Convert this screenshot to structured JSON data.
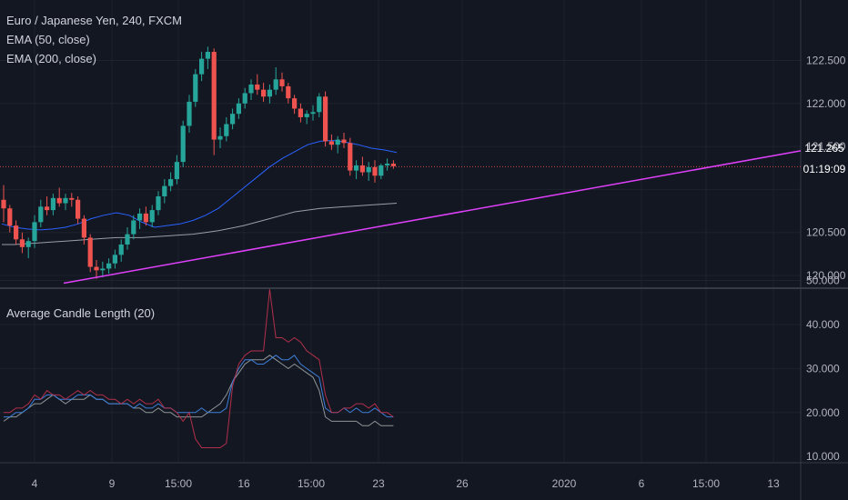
{
  "legend": {
    "symbol": "Euro / Japanese Yen, 240, FXCM",
    "ema50": "EMA (50, close)",
    "ema200": "EMA (200, close)",
    "indicator": "Average Candle Length (20)"
  },
  "price_tags": {
    "last_price": "121.265",
    "countdown": "01:19:09",
    "color": "#ef5350"
  },
  "colors": {
    "background": "#131722",
    "grid": "#1e222d",
    "text": "#b2b5be",
    "up": "#26a69a",
    "down": "#ef5350",
    "ema50": "#2962ff",
    "ema200": "#b2b5be",
    "trendline": "#e040fb",
    "acl_red": "#b2304a",
    "acl_blue": "#3d7fd9",
    "acl_gray": "#8e9596"
  },
  "chart_data": [
    {
      "type": "candlestick",
      "title": "Euro / Japanese Yen, 240, FXCM",
      "ylim": [
        119.85,
        122.75
      ],
      "y_ticks": [
        "122.500",
        "122.000",
        "121.500",
        "120.500",
        "120.000"
      ],
      "x_ticks": [
        "4",
        "9",
        "15:00",
        "16",
        "15:00",
        "23",
        "26",
        "2020",
        "6",
        "15:00",
        "13"
      ],
      "last_price": 121.265,
      "candles_ohlc": [
        [
          120.88,
          121.05,
          120.62,
          120.78
        ],
        [
          120.78,
          120.82,
          120.5,
          120.58
        ],
        [
          120.58,
          120.64,
          120.36,
          120.42
        ],
        [
          120.42,
          120.5,
          120.26,
          120.33
        ],
        [
          120.33,
          120.44,
          120.2,
          120.4
        ],
        [
          120.4,
          120.7,
          120.32,
          120.62
        ],
        [
          120.62,
          120.88,
          120.56,
          120.8
        ],
        [
          120.8,
          120.92,
          120.7,
          120.76
        ],
        [
          120.76,
          120.95,
          120.7,
          120.9
        ],
        [
          120.9,
          121.02,
          120.8,
          120.84
        ],
        [
          120.84,
          120.95,
          120.76,
          120.9
        ],
        [
          120.9,
          120.96,
          120.8,
          120.88
        ],
        [
          120.88,
          120.92,
          120.6,
          120.66
        ],
        [
          120.66,
          120.7,
          120.36,
          120.44
        ],
        [
          120.44,
          120.48,
          120.04,
          120.1
        ],
        [
          120.1,
          120.18,
          119.96,
          120.06
        ],
        [
          120.06,
          120.16,
          119.98,
          120.08
        ],
        [
          120.08,
          120.2,
          120.02,
          120.14
        ],
        [
          120.14,
          120.3,
          120.08,
          120.24
        ],
        [
          120.24,
          120.42,
          120.16,
          120.36
        ],
        [
          120.36,
          120.56,
          120.3,
          120.48
        ],
        [
          120.48,
          120.7,
          120.42,
          120.64
        ],
        [
          120.64,
          120.78,
          120.54,
          120.72
        ],
        [
          120.72,
          120.8,
          120.58,
          120.62
        ],
        [
          120.62,
          120.82,
          120.56,
          120.76
        ],
        [
          120.76,
          120.98,
          120.7,
          120.92
        ],
        [
          120.92,
          121.12,
          120.84,
          121.04
        ],
        [
          121.04,
          121.2,
          120.98,
          121.12
        ],
        [
          121.12,
          121.4,
          121.06,
          121.32
        ],
        [
          121.32,
          121.8,
          121.26,
          121.74
        ],
        [
          121.74,
          122.1,
          121.66,
          122.02
        ],
        [
          122.02,
          122.4,
          121.96,
          122.34
        ],
        [
          122.34,
          122.6,
          122.26,
          122.52
        ],
        [
          122.52,
          122.66,
          122.4,
          122.6
        ],
        [
          122.6,
          122.64,
          121.4,
          121.58
        ],
        [
          121.58,
          121.72,
          121.48,
          121.62
        ],
        [
          121.62,
          121.84,
          121.56,
          121.76
        ],
        [
          121.76,
          121.94,
          121.7,
          121.88
        ],
        [
          121.88,
          122.06,
          121.82,
          122.0
        ],
        [
          122.0,
          122.18,
          121.94,
          122.12
        ],
        [
          122.12,
          122.28,
          122.04,
          122.22
        ],
        [
          122.22,
          122.34,
          122.1,
          122.16
        ],
        [
          122.16,
          122.24,
          122.02,
          122.08
        ],
        [
          122.08,
          122.22,
          122.0,
          122.16
        ],
        [
          122.16,
          122.42,
          122.1,
          122.28
        ],
        [
          122.28,
          122.36,
          122.14,
          122.2
        ],
        [
          122.2,
          122.24,
          122.0,
          122.06
        ],
        [
          122.06,
          122.1,
          121.88,
          121.94
        ],
        [
          121.94,
          122.0,
          121.78,
          121.84
        ],
        [
          121.84,
          121.92,
          121.76,
          121.88
        ],
        [
          121.88,
          121.98,
          121.8,
          121.9
        ],
        [
          121.9,
          122.12,
          121.84,
          122.08
        ],
        [
          122.08,
          122.14,
          121.5,
          121.56
        ],
        [
          121.56,
          121.64,
          121.46,
          121.52
        ],
        [
          121.52,
          121.62,
          121.42,
          121.58
        ],
        [
          121.58,
          121.66,
          121.48,
          121.54
        ],
        [
          121.54,
          121.6,
          121.16,
          121.22
        ],
        [
          121.22,
          121.34,
          121.12,
          121.28
        ],
        [
          121.28,
          121.38,
          121.16,
          121.2
        ],
        [
          121.2,
          121.32,
          121.1,
          121.26
        ],
        [
          121.26,
          121.34,
          121.08,
          121.16
        ],
        [
          121.16,
          121.3,
          121.12,
          121.28
        ],
        [
          121.28,
          121.36,
          121.22,
          121.3
        ],
        [
          121.3,
          121.34,
          121.24,
          121.27
        ]
      ],
      "ema50": [
        120.6,
        120.56,
        120.54,
        120.53,
        120.54,
        120.56,
        120.6,
        120.66,
        120.7,
        120.73,
        120.7,
        120.62,
        120.56,
        120.58,
        120.6,
        120.64,
        120.7,
        120.78,
        120.9,
        121.02,
        121.14,
        121.26,
        121.36,
        121.44,
        121.52,
        121.56,
        121.57,
        121.55,
        121.52,
        121.48,
        121.46,
        121.43
      ],
      "ema200": [
        120.36,
        120.36,
        120.37,
        120.38,
        120.39,
        120.4,
        120.41,
        120.42,
        120.43,
        120.44,
        120.44,
        120.44,
        120.45,
        120.46,
        120.47,
        120.48,
        120.5,
        120.52,
        120.55,
        120.58,
        120.62,
        120.66,
        120.7,
        120.74,
        120.76,
        120.78,
        120.79,
        120.8,
        120.81,
        120.82,
        120.83,
        120.84
      ],
      "trendline": [
        [
          120.1,
          119.91
        ],
        [
          122.1,
          121.45
        ]
      ]
    },
    {
      "type": "line",
      "title": "Average Candle Length (20)",
      "ylim": [
        9,
        50
      ],
      "y_ticks": [
        "50.000",
        "40.000",
        "30.000",
        "20.000",
        "10.000"
      ],
      "series": [
        {
          "values": [
            20,
            20,
            21,
            21,
            22,
            24,
            23,
            25,
            24,
            24,
            23,
            24,
            25,
            24,
            25,
            24,
            24,
            23,
            23,
            22,
            23,
            22,
            23,
            22,
            22,
            23,
            21,
            21,
            20,
            18,
            20,
            14,
            12,
            12,
            12,
            12,
            13,
            26,
            31,
            33,
            34,
            34,
            34,
            48,
            37,
            37,
            36,
            37,
            36,
            34,
            33,
            32,
            24,
            20,
            20,
            21,
            21,
            22,
            22,
            21,
            22,
            20,
            20,
            19
          ]
        },
        {
          "values": [
            19,
            19,
            20,
            20,
            21,
            23,
            23,
            24,
            24,
            23,
            23,
            23,
            24,
            24,
            24,
            23,
            23,
            22,
            22,
            22,
            22,
            21,
            22,
            21,
            21,
            22,
            21,
            21,
            20,
            20,
            20,
            20,
            21,
            20,
            20,
            20,
            21,
            27,
            30,
            32,
            32,
            31,
            31,
            32,
            33,
            32,
            32,
            33,
            31,
            30,
            29,
            28,
            21,
            20,
            20,
            21,
            20,
            21,
            20,
            20,
            21,
            20,
            19,
            19
          ]
        },
        {
          "values": [
            18,
            19,
            19,
            20,
            21,
            22,
            22,
            23,
            24,
            23,
            22,
            23,
            23,
            23,
            24,
            23,
            23,
            22,
            22,
            22,
            22,
            21,
            21,
            20,
            20,
            21,
            20,
            20,
            19,
            19,
            19,
            19,
            19,
            20,
            21,
            22,
            24,
            27,
            29,
            31,
            32,
            32,
            32,
            33,
            32,
            31,
            30,
            31,
            30,
            29,
            28,
            25,
            19,
            18,
            18,
            18,
            18,
            18,
            17,
            17,
            18,
            17,
            17,
            17
          ]
        }
      ]
    }
  ]
}
